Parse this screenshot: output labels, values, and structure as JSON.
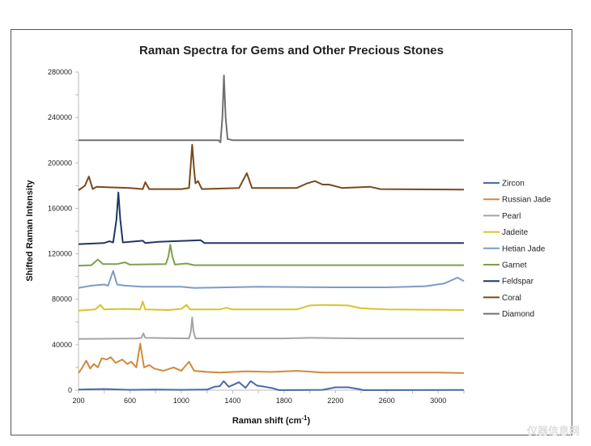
{
  "chart_data": {
    "type": "line",
    "title": "Raman Spectra for Gems and Other Precious Stones",
    "xlabel": "Raman shift (cm",
    "xlabel_sup": "-1",
    "xlabel_end": ")",
    "ylabel": "Shifted Raman Intensity",
    "xlim": [
      200,
      3200
    ],
    "ylim": [
      0,
      280000
    ],
    "xticks": [
      200,
      600,
      1000,
      1400,
      1800,
      2200,
      2600,
      3000
    ],
    "yticks": [
      0,
      40000,
      80000,
      120000,
      160000,
      200000,
      240000,
      280000
    ],
    "legend_position": "right",
    "series": [
      {
        "name": "Zircon",
        "color": "#4a6aaa",
        "points": [
          [
            200,
            500
          ],
          [
            400,
            1000
          ],
          [
            600,
            300
          ],
          [
            800,
            600
          ],
          [
            1000,
            300
          ],
          [
            1200,
            500
          ],
          [
            1260,
            3000
          ],
          [
            1300,
            3500
          ],
          [
            1330,
            8000
          ],
          [
            1370,
            3000
          ],
          [
            1450,
            7000
          ],
          [
            1500,
            2000
          ],
          [
            1540,
            8000
          ],
          [
            1590,
            4000
          ],
          [
            1650,
            3000
          ],
          [
            1720,
            1500
          ],
          [
            1760,
            0
          ],
          [
            2100,
            300
          ],
          [
            2200,
            2500
          ],
          [
            2300,
            2500
          ],
          [
            2380,
            1000
          ],
          [
            2420,
            0
          ],
          [
            3200,
            200
          ]
        ]
      },
      {
        "name": "Russian Jade",
        "color": "#d08a3c",
        "points": [
          [
            200,
            15000
          ],
          [
            230,
            20000
          ],
          [
            260,
            26000
          ],
          [
            290,
            19000
          ],
          [
            320,
            23000
          ],
          [
            350,
            20000
          ],
          [
            380,
            28000
          ],
          [
            420,
            27000
          ],
          [
            450,
            29000
          ],
          [
            490,
            24000
          ],
          [
            540,
            27000
          ],
          [
            580,
            23000
          ],
          [
            610,
            25000
          ],
          [
            650,
            20000
          ],
          [
            680,
            41000
          ],
          [
            710,
            20000
          ],
          [
            750,
            22000
          ],
          [
            790,
            19000
          ],
          [
            860,
            17000
          ],
          [
            940,
            20000
          ],
          [
            1000,
            17000
          ],
          [
            1060,
            25000
          ],
          [
            1100,
            17000
          ],
          [
            1200,
            16000
          ],
          [
            1300,
            15500
          ],
          [
            1500,
            16500
          ],
          [
            1700,
            16000
          ],
          [
            1900,
            17000
          ],
          [
            2100,
            15500
          ],
          [
            2500,
            15500
          ],
          [
            3000,
            15500
          ],
          [
            3200,
            15000
          ]
        ]
      },
      {
        "name": "Pearl",
        "color": "#a5a5a5",
        "points": [
          [
            200,
            45000
          ],
          [
            650,
            45500
          ],
          [
            690,
            46000
          ],
          [
            705,
            50000
          ],
          [
            720,
            46000
          ],
          [
            1060,
            45500
          ],
          [
            1075,
            52000
          ],
          [
            1085,
            64000
          ],
          [
            1095,
            52000
          ],
          [
            1110,
            45500
          ],
          [
            1800,
            45500
          ],
          [
            2000,
            46000
          ],
          [
            2400,
            45500
          ],
          [
            3200,
            45500
          ]
        ]
      },
      {
        "name": "Jadeite",
        "color": "#d8c42a",
        "points": [
          [
            200,
            70000
          ],
          [
            330,
            71000
          ],
          [
            370,
            75000
          ],
          [
            400,
            71000
          ],
          [
            550,
            71500
          ],
          [
            680,
            71000
          ],
          [
            700,
            78000
          ],
          [
            720,
            71000
          ],
          [
            900,
            70500
          ],
          [
            1000,
            71500
          ],
          [
            1040,
            75000
          ],
          [
            1070,
            71000
          ],
          [
            1300,
            71000
          ],
          [
            1350,
            72500
          ],
          [
            1400,
            71000
          ],
          [
            1900,
            71000
          ],
          [
            2000,
            74500
          ],
          [
            2100,
            75000
          ],
          [
            2300,
            74500
          ],
          [
            2400,
            72000
          ],
          [
            2600,
            71000
          ],
          [
            3200,
            70500
          ]
        ]
      },
      {
        "name": "Hetian Jade",
        "color": "#7a9cc8",
        "points": [
          [
            200,
            90000
          ],
          [
            300,
            92000
          ],
          [
            400,
            93000
          ],
          [
            430,
            92000
          ],
          [
            470,
            105000
          ],
          [
            500,
            93000
          ],
          [
            560,
            92000
          ],
          [
            700,
            91000
          ],
          [
            1000,
            91000
          ],
          [
            1100,
            90000
          ],
          [
            1600,
            91000
          ],
          [
            2200,
            90500
          ],
          [
            2600,
            90500
          ],
          [
            2900,
            91500
          ],
          [
            3050,
            94000
          ],
          [
            3150,
            99000
          ],
          [
            3200,
            96000
          ]
        ]
      },
      {
        "name": "Garnet",
        "color": "#7ea04a",
        "points": [
          [
            200,
            109500
          ],
          [
            300,
            110000
          ],
          [
            350,
            115000
          ],
          [
            390,
            111000
          ],
          [
            500,
            111000
          ],
          [
            560,
            112500
          ],
          [
            600,
            110500
          ],
          [
            880,
            111000
          ],
          [
            900,
            118000
          ],
          [
            915,
            128000
          ],
          [
            930,
            118000
          ],
          [
            950,
            110500
          ],
          [
            1040,
            111500
          ],
          [
            1100,
            110000
          ],
          [
            3200,
            110000
          ]
        ]
      },
      {
        "name": "Feldspar",
        "color": "#1f3864",
        "points": [
          [
            200,
            128500
          ],
          [
            400,
            129500
          ],
          [
            440,
            131000
          ],
          [
            470,
            130000
          ],
          [
            495,
            150000
          ],
          [
            510,
            174000
          ],
          [
            525,
            150000
          ],
          [
            545,
            130000
          ],
          [
            700,
            131500
          ],
          [
            720,
            129500
          ],
          [
            820,
            130500
          ],
          [
            1150,
            132000
          ],
          [
            1180,
            129500
          ],
          [
            1500,
            129500
          ],
          [
            3200,
            129500
          ]
        ]
      },
      {
        "name": "Coral",
        "color": "#7a4a1a",
        "points": [
          [
            200,
            176000
          ],
          [
            250,
            180000
          ],
          [
            280,
            188000
          ],
          [
            310,
            177000
          ],
          [
            340,
            179000
          ],
          [
            600,
            178000
          ],
          [
            700,
            177000
          ],
          [
            720,
            183000
          ],
          [
            750,
            177000
          ],
          [
            1000,
            177000
          ],
          [
            1060,
            178000
          ],
          [
            1075,
            200000
          ],
          [
            1085,
            216000
          ],
          [
            1098,
            196000
          ],
          [
            1110,
            182000
          ],
          [
            1130,
            184000
          ],
          [
            1160,
            177000
          ],
          [
            1450,
            178000
          ],
          [
            1510,
            191000
          ],
          [
            1550,
            178000
          ],
          [
            1900,
            178000
          ],
          [
            1980,
            182000
          ],
          [
            2040,
            184000
          ],
          [
            2100,
            181000
          ],
          [
            2150,
            181000
          ],
          [
            2250,
            178000
          ],
          [
            2470,
            179000
          ],
          [
            2550,
            177000
          ],
          [
            3200,
            176500
          ]
        ]
      },
      {
        "name": "Diamond",
        "color": "#707070",
        "points": [
          [
            200,
            220000
          ],
          [
            800,
            220000
          ],
          [
            1290,
            220000
          ],
          [
            1305,
            218000
          ],
          [
            1320,
            240000
          ],
          [
            1332,
            277000
          ],
          [
            1345,
            240000
          ],
          [
            1360,
            221000
          ],
          [
            1400,
            220000
          ],
          [
            3200,
            220000
          ]
        ]
      }
    ]
  },
  "watermark": "仪器信息网"
}
